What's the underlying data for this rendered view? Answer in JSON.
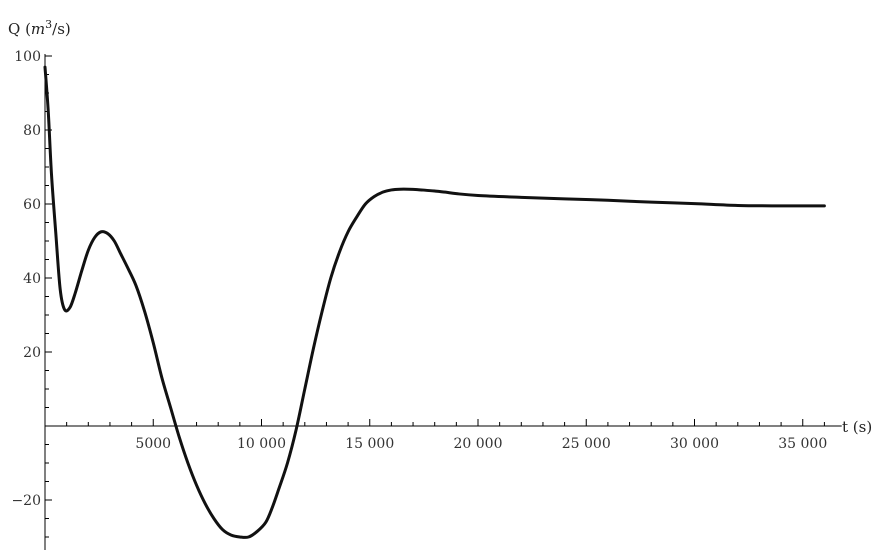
{
  "chart_data": {
    "type": "line",
    "title": "",
    "xlabel": "t (s)",
    "ylabel": {
      "prefix": "Q (",
      "unit_base": "m",
      "unit_exp": "3",
      "unit_suffix": "/s)"
    },
    "xlim": [
      0,
      36800
    ],
    "ylim": [
      -32,
      100
    ],
    "x_ticks": [
      {
        "value": 5000,
        "label": "5000"
      },
      {
        "value": 10000,
        "label": "10 000"
      },
      {
        "value": 15000,
        "label": "15 000"
      },
      {
        "value": 20000,
        "label": "20 000"
      },
      {
        "value": 25000,
        "label": "25 000"
      },
      {
        "value": 30000,
        "label": "30 000"
      },
      {
        "value": 35000,
        "label": "35 000"
      }
    ],
    "y_ticks": [
      {
        "value": -20,
        "label": "−20"
      },
      {
        "value": 20,
        "label": "20"
      },
      {
        "value": 40,
        "label": "40"
      },
      {
        "value": 60,
        "label": "60"
      },
      {
        "value": 80,
        "label": "80"
      },
      {
        "value": 100,
        "label": "100"
      }
    ],
    "grid": false,
    "series": [
      {
        "color": "#111111",
        "x": [
          0,
          150,
          300,
          500,
          700,
          900,
          1150,
          1400,
          1700,
          2000,
          2300,
          2600,
          2900,
          3200,
          3500,
          3800,
          4200,
          4600,
          5000,
          5400,
          5800,
          6200,
          6600,
          7000,
          7400,
          7800,
          8200,
          8600,
          9000,
          9400,
          9800,
          10200,
          10500,
          10800,
          11200,
          11600,
          12000,
          12400,
          12800,
          13200,
          13600,
          14000,
          14400,
          14800,
          15200,
          15600,
          16000,
          16400,
          16800,
          17200,
          17600,
          18000,
          18500,
          19000,
          20000,
          22000,
          24000,
          26000,
          28000,
          30000,
          32000,
          34000,
          36000
        ],
        "y": [
          97,
          85,
          68,
          52,
          37,
          31.5,
          32,
          36,
          42,
          47.5,
          51,
          52.5,
          52,
          50,
          46.5,
          43,
          38,
          31,
          22.5,
          13,
          5,
          -3,
          -10,
          -16,
          -21,
          -25,
          -28,
          -29.5,
          -30,
          -30,
          -28.5,
          -26,
          -22,
          -17,
          -10,
          -1,
          10,
          21,
          31,
          40,
          47,
          52.5,
          56.5,
          60,
          62,
          63.2,
          63.8,
          64,
          64,
          63.9,
          63.7,
          63.5,
          63.2,
          62.8,
          62.3,
          61.8,
          61.4,
          61.0,
          60.5,
          60.1,
          59.6,
          59.5,
          59.5
        ]
      }
    ]
  }
}
